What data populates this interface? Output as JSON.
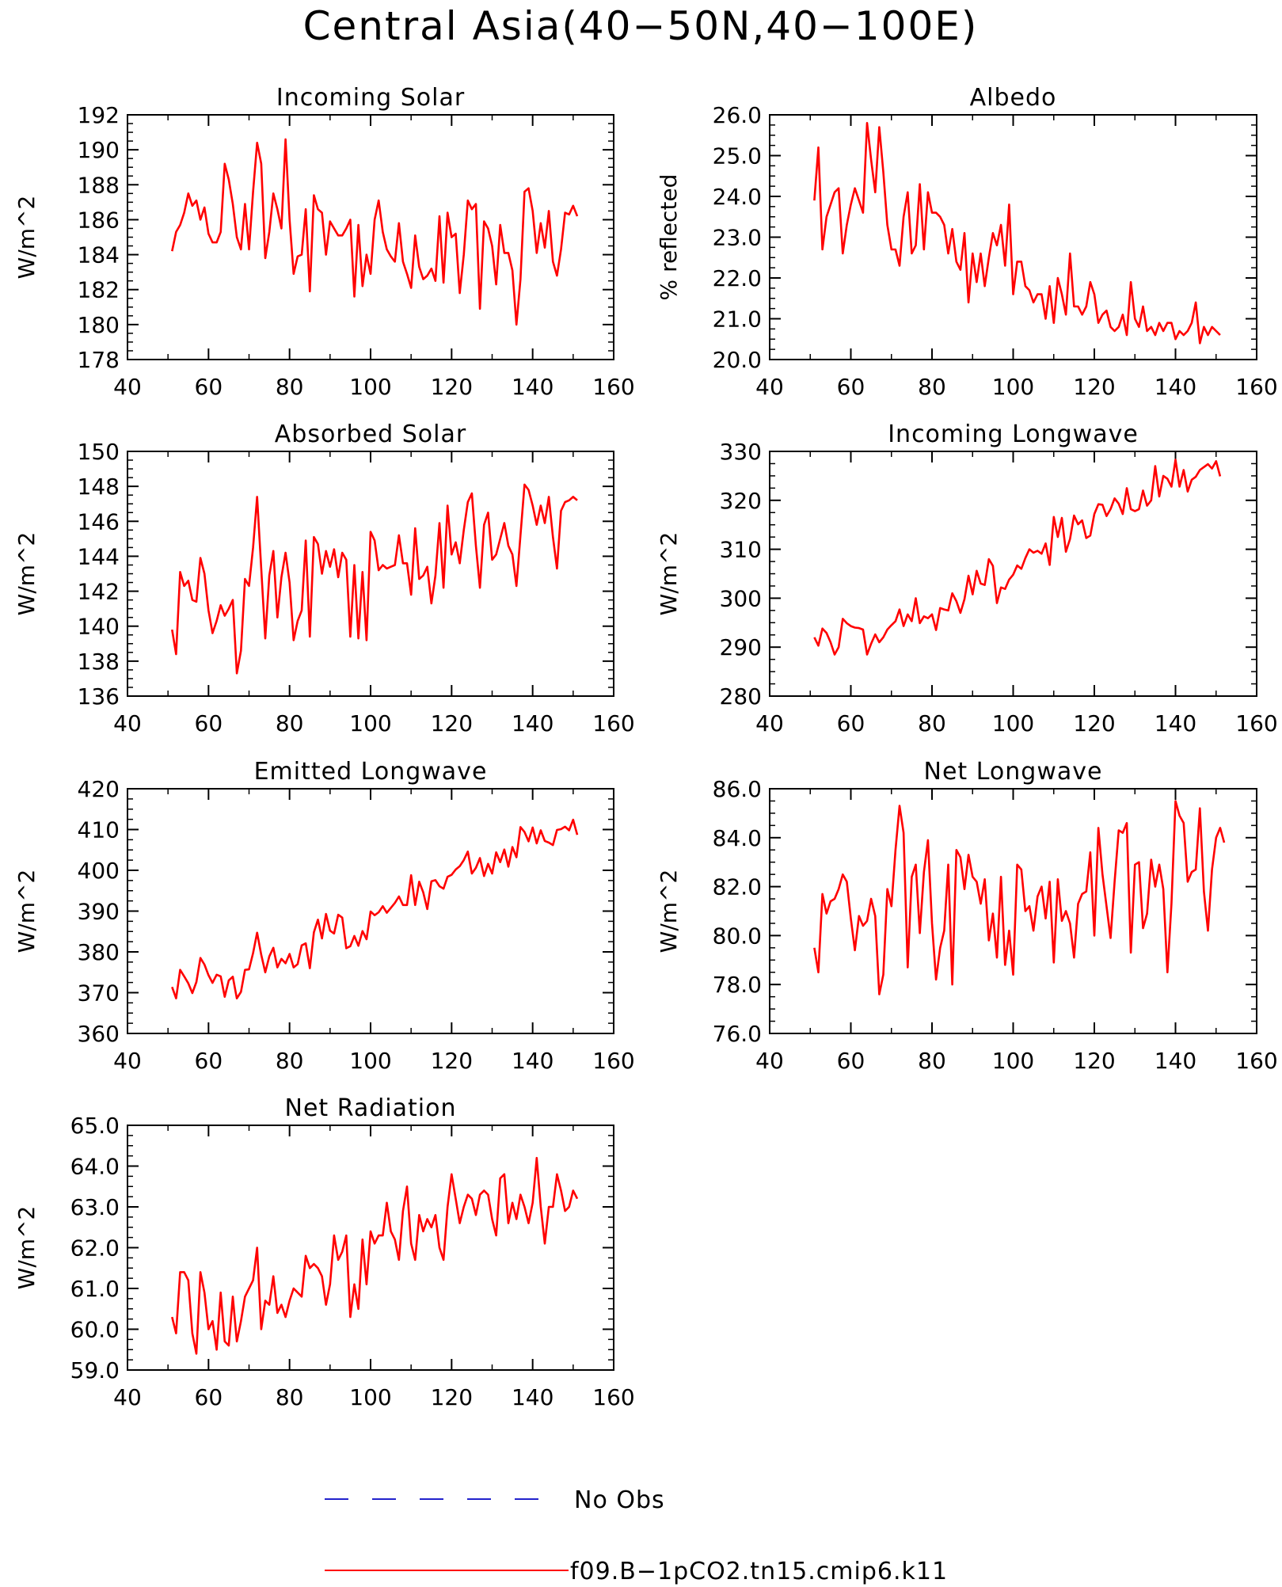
{
  "figure": {
    "title": "Central Asia(40−50N,40−100E)"
  },
  "legend": {
    "entries": [
      {
        "label": "No Obs",
        "color": "#2222cc",
        "dash": "dashed"
      },
      {
        "label": "f09.B−1pCO2.tn15.cmip6.k11",
        "color": "#ff0000",
        "dash": "solid"
      }
    ]
  },
  "colors": {
    "series": "#ff0000",
    "obs": "#2222cc",
    "axis": "#000000"
  },
  "chart_data": [
    {
      "type": "line",
      "title": "Incoming Solar",
      "ylabel": "W/m^2",
      "xlim": [
        40,
        160
      ],
      "ylim": [
        178,
        192
      ],
      "xticks": [
        40,
        60,
        80,
        100,
        120,
        140,
        160
      ],
      "yticks": [
        178,
        180,
        182,
        184,
        186,
        188,
        190,
        192
      ],
      "ytick_labels": [
        "178",
        "180",
        "182",
        "184",
        "186",
        "188",
        "190",
        "192"
      ],
      "x_start": 51,
      "series": [
        {
          "name": "f09.B−1pCO2.tn15.cmip6.k11",
          "values": [
            184.2,
            185.3,
            185.7,
            186.4,
            187.5,
            186.8,
            187.1,
            186.0,
            186.7,
            185.2,
            184.7,
            184.7,
            185.3,
            189.2,
            188.3,
            186.9,
            185.0,
            184.3,
            186.9,
            184.3,
            187.6,
            190.4,
            189.2,
            183.8,
            185.3,
            187.5,
            186.6,
            185.5,
            190.6,
            186.0,
            182.9,
            183.9,
            184.0,
            186.6,
            181.9,
            187.4,
            186.6,
            186.4,
            184.0,
            185.9,
            185.5,
            185.1,
            185.1,
            185.5,
            186.0,
            181.6,
            185.7,
            182.2,
            184.0,
            182.9,
            186.0,
            187.1,
            185.3,
            184.3,
            183.9,
            183.6,
            185.8,
            183.6,
            182.9,
            182.1,
            185.1,
            183.3,
            182.6,
            182.8,
            183.2,
            182.5,
            186.2,
            182.4,
            186.4,
            185.0,
            185.2,
            181.8,
            184.0,
            187.1,
            186.6,
            186.9,
            180.9,
            185.9,
            185.5,
            184.5,
            182.3,
            185.7,
            184.1,
            184.1,
            183.1,
            180.0,
            182.6,
            187.6,
            187.8,
            186.5,
            184.1,
            185.8,
            184.4,
            186.5,
            183.6,
            182.8,
            184.3,
            186.4,
            186.3,
            186.8,
            186.2
          ]
        }
      ]
    },
    {
      "type": "line",
      "title": "Albedo",
      "ylabel": "% reflected",
      "xlim": [
        40,
        160
      ],
      "ylim": [
        20,
        26
      ],
      "xticks": [
        40,
        60,
        80,
        100,
        120,
        140,
        160
      ],
      "yticks": [
        20,
        21,
        22,
        23,
        24,
        25,
        26
      ],
      "ytick_labels": [
        "20.0",
        "21.0",
        "22.0",
        "23.0",
        "24.0",
        "25.0",
        "26.0"
      ],
      "x_start": 51,
      "series": [
        {
          "name": "f09.B−1pCO2.tn15.cmip6.k11",
          "values": [
            23.9,
            25.2,
            22.7,
            23.5,
            23.8,
            24.1,
            24.2,
            22.6,
            23.3,
            23.8,
            24.2,
            23.9,
            23.6,
            25.8,
            24.9,
            24.1,
            25.7,
            24.6,
            23.3,
            22.7,
            22.7,
            22.3,
            23.5,
            24.1,
            22.6,
            22.8,
            24.3,
            22.7,
            24.1,
            23.6,
            23.6,
            23.5,
            23.3,
            22.6,
            23.2,
            22.4,
            22.2,
            23.1,
            21.4,
            22.6,
            21.9,
            22.6,
            21.8,
            22.5,
            23.1,
            22.8,
            23.3,
            22.3,
            23.8,
            21.6,
            22.4,
            22.4,
            21.8,
            21.7,
            21.4,
            21.6,
            21.6,
            21.0,
            21.8,
            20.9,
            22.0,
            21.6,
            21.1,
            22.6,
            21.3,
            21.3,
            21.1,
            21.3,
            21.9,
            21.6,
            20.9,
            21.1,
            21.2,
            20.8,
            20.7,
            20.8,
            21.1,
            20.6,
            21.9,
            21.0,
            20.8,
            21.3,
            20.7,
            20.8,
            20.6,
            20.9,
            20.7,
            20.9,
            20.9,
            20.5,
            20.7,
            20.6,
            20.7,
            20.9,
            21.4,
            20.4,
            20.8,
            20.6,
            20.8,
            20.7,
            20.6
          ]
        }
      ]
    },
    {
      "type": "line",
      "title": "Absorbed Solar",
      "ylabel": "W/m^2",
      "xlim": [
        40,
        160
      ],
      "ylim": [
        136,
        150
      ],
      "xticks": [
        40,
        60,
        80,
        100,
        120,
        140,
        160
      ],
      "yticks": [
        136,
        138,
        140,
        142,
        144,
        146,
        148,
        150
      ],
      "ytick_labels": [
        "136",
        "138",
        "140",
        "142",
        "144",
        "146",
        "148",
        "150"
      ],
      "x_start": 51,
      "series": [
        {
          "name": "f09.B−1pCO2.tn15.cmip6.k11",
          "values": [
            139.8,
            138.4,
            143.1,
            142.3,
            142.6,
            141.5,
            141.4,
            143.9,
            143.0,
            140.9,
            139.6,
            140.3,
            141.2,
            140.6,
            141.0,
            141.5,
            137.3,
            138.6,
            142.7,
            142.3,
            144.5,
            147.4,
            143.3,
            139.3,
            142.9,
            144.3,
            140.5,
            142.8,
            144.2,
            142.5,
            139.2,
            140.3,
            140.9,
            144.9,
            139.4,
            145.1,
            144.7,
            143.0,
            144.3,
            143.4,
            144.4,
            142.8,
            144.2,
            143.8,
            139.4,
            143.5,
            139.3,
            143.1,
            139.2,
            145.4,
            144.9,
            143.2,
            143.5,
            143.3,
            143.4,
            143.5,
            145.2,
            143.6,
            143.6,
            141.8,
            145.6,
            142.7,
            142.9,
            143.4,
            141.3,
            142.9,
            145.9,
            142.2,
            146.9,
            144.1,
            144.8,
            143.6,
            145.5,
            147.1,
            147.6,
            144.6,
            142.2,
            145.8,
            146.5,
            143.8,
            144.1,
            145.0,
            145.9,
            144.6,
            144.1,
            142.3,
            145.2,
            148.1,
            147.8,
            146.9,
            145.8,
            146.9,
            145.9,
            147.4,
            145.1,
            143.3,
            146.6,
            147.1,
            147.2,
            147.4,
            147.2
          ]
        }
      ]
    },
    {
      "type": "line",
      "title": "Incoming Longwave",
      "ylabel": "W/m^2",
      "xlim": [
        40,
        160
      ],
      "ylim": [
        280,
        330
      ],
      "xticks": [
        40,
        60,
        80,
        100,
        120,
        140,
        160
      ],
      "yticks": [
        280,
        290,
        300,
        310,
        320,
        330
      ],
      "ytick_labels": [
        "280",
        "290",
        "300",
        "310",
        "320",
        "330"
      ],
      "x_start": 51,
      "series": [
        {
          "name": "f09.B−1pCO2.tn15.cmip6.k11",
          "values": [
            292.0,
            290.3,
            293.8,
            292.9,
            291.0,
            288.5,
            290.0,
            295.8,
            294.9,
            294.3,
            294.0,
            293.9,
            293.6,
            288.5,
            290.7,
            292.6,
            291.0,
            292.0,
            293.6,
            294.5,
            295.3,
            297.7,
            294.3,
            296.7,
            295.3,
            300.0,
            294.9,
            296.3,
            295.9,
            296.7,
            293.5,
            298.0,
            297.7,
            297.5,
            301.0,
            299.4,
            297.0,
            299.8,
            304.6,
            300.8,
            305.6,
            303.0,
            302.7,
            308.0,
            306.6,
            299.0,
            302.2,
            301.9,
            303.8,
            304.8,
            306.7,
            306.0,
            308.2,
            310.0,
            309.3,
            309.7,
            309.1,
            311.2,
            306.8,
            316.6,
            312.5,
            316.4,
            309.5,
            312.1,
            316.9,
            315.1,
            315.9,
            312.3,
            312.8,
            317.2,
            319.2,
            319.1,
            316.8,
            318.2,
            320.4,
            319.3,
            317.2,
            322.5,
            318.2,
            317.8,
            318.2,
            322.0,
            318.9,
            320.0,
            327.0,
            320.8,
            325.0,
            324.4,
            322.8,
            328.3,
            322.8,
            326.2,
            321.8,
            324.2,
            324.8,
            326.2,
            326.8,
            327.4,
            326.5,
            328.0,
            324.9
          ]
        }
      ]
    },
    {
      "type": "line",
      "title": "Emitted Longwave",
      "ylabel": "W/m^2",
      "xlim": [
        40,
        160
      ],
      "ylim": [
        360,
        420
      ],
      "xticks": [
        40,
        60,
        80,
        100,
        120,
        140,
        160
      ],
      "yticks": [
        360,
        370,
        380,
        390,
        400,
        410,
        420
      ],
      "ytick_labels": [
        "360",
        "370",
        "380",
        "390",
        "400",
        "410",
        "420"
      ],
      "x_start": 51,
      "series": [
        {
          "name": "f09.B−1pCO2.tn15.cmip6.k11",
          "values": [
            371.4,
            368.6,
            375.6,
            374.0,
            372.3,
            369.9,
            372.6,
            378.5,
            376.9,
            374.3,
            372.4,
            374.4,
            374.0,
            369.0,
            373.0,
            373.9,
            368.6,
            370.2,
            375.6,
            375.7,
            379.7,
            384.7,
            379.3,
            375.0,
            378.9,
            381.0,
            376.2,
            378.3,
            377.2,
            379.5,
            376.2,
            377.0,
            381.6,
            382.1,
            376.0,
            384.8,
            387.9,
            383.3,
            389.3,
            385.2,
            384.5,
            389.1,
            388.4,
            380.9,
            381.4,
            383.9,
            381.5,
            385.1,
            383.1,
            389.9,
            389.0,
            389.7,
            391.2,
            389.6,
            390.8,
            392.0,
            393.6,
            391.5,
            391.5,
            398.8,
            391.5,
            397.2,
            394.6,
            390.5,
            397.3,
            397.6,
            396.1,
            395.5,
            398.4,
            398.9,
            400.2,
            401.0,
            402.5,
            404.6,
            399.2,
            400.6,
            403.0,
            398.6,
            401.6,
            399.2,
            404.4,
            402.0,
            405.1,
            400.9,
            405.7,
            403.2,
            410.6,
            409.4,
            407.1,
            410.5,
            406.6,
            409.8,
            407.2,
            406.8,
            406.2,
            409.9,
            410.1,
            410.7,
            409.8,
            412.4,
            408.7
          ]
        }
      ]
    },
    {
      "type": "line",
      "title": "Net Longwave",
      "ylabel": "W/m^2",
      "xlim": [
        40,
        160
      ],
      "ylim": [
        76,
        86
      ],
      "xticks": [
        40,
        60,
        80,
        100,
        120,
        140,
        160
      ],
      "yticks": [
        76,
        78,
        80,
        82,
        84,
        86
      ],
      "ytick_labels": [
        "76.0",
        "78.0",
        "80.0",
        "82.0",
        "84.0",
        "86.0"
      ],
      "x_start": 51,
      "series": [
        {
          "name": "f09.B−1pCO2.tn15.cmip6.k11",
          "values": [
            79.5,
            78.5,
            81.7,
            80.9,
            81.4,
            81.5,
            81.9,
            82.5,
            82.2,
            80.7,
            79.4,
            80.8,
            80.4,
            80.6,
            81.5,
            80.8,
            77.6,
            78.4,
            81.9,
            81.2,
            83.5,
            85.3,
            84.2,
            78.7,
            82.4,
            82.9,
            80.1,
            82.6,
            83.9,
            80.5,
            78.2,
            79.5,
            80.2,
            82.9,
            78.0,
            83.5,
            83.2,
            81.9,
            83.3,
            82.4,
            82.2,
            81.3,
            82.3,
            79.8,
            80.9,
            79.1,
            82.4,
            78.8,
            80.2,
            78.4,
            82.9,
            82.7,
            81.0,
            81.2,
            80.2,
            81.6,
            82.0,
            80.7,
            82.2,
            78.9,
            82.3,
            80.6,
            81.0,
            80.5,
            79.1,
            81.3,
            81.7,
            81.8,
            83.4,
            80.0,
            84.4,
            82.5,
            81.2,
            79.9,
            82.2,
            84.3,
            84.2,
            84.6,
            79.3,
            82.9,
            83.0,
            80.3,
            80.9,
            83.1,
            82.0,
            82.9,
            81.9,
            78.5,
            81.3,
            85.5,
            84.9,
            84.6,
            82.2,
            82.6,
            82.7,
            85.2,
            81.8,
            80.2,
            82.7,
            84.0,
            84.4,
            83.8
          ]
        }
      ]
    },
    {
      "type": "line",
      "title": "Net Radiation",
      "ylabel": "W/m^2",
      "xlim": [
        40,
        160
      ],
      "ylim": [
        59,
        65
      ],
      "xticks": [
        40,
        60,
        80,
        100,
        120,
        140,
        160
      ],
      "yticks": [
        59,
        60,
        61,
        62,
        63,
        64,
        65
      ],
      "ytick_labels": [
        "59.0",
        "60.0",
        "61.0",
        "62.0",
        "63.0",
        "64.0",
        "65.0"
      ],
      "x_start": 51,
      "series": [
        {
          "name": "f09.B−1pCO2.tn15.cmip6.k11",
          "values": [
            60.3,
            59.9,
            61.4,
            61.4,
            61.2,
            59.9,
            59.4,
            61.4,
            60.9,
            60.0,
            60.2,
            59.5,
            60.9,
            59.7,
            59.6,
            60.8,
            59.7,
            60.2,
            60.8,
            61.0,
            61.2,
            62.0,
            60.0,
            60.7,
            60.6,
            61.3,
            60.4,
            60.6,
            60.3,
            60.7,
            61.0,
            60.9,
            60.8,
            61.8,
            61.5,
            61.6,
            61.5,
            61.3,
            60.6,
            61.1,
            62.3,
            61.7,
            61.9,
            62.3,
            60.3,
            61.1,
            60.5,
            62.2,
            61.1,
            62.4,
            62.1,
            62.3,
            62.3,
            63.1,
            62.4,
            62.2,
            61.7,
            62.9,
            63.5,
            62.1,
            61.7,
            62.8,
            62.4,
            62.7,
            62.5,
            62.8,
            62.0,
            61.7,
            63.0,
            63.8,
            63.2,
            62.6,
            63.0,
            63.3,
            63.2,
            62.8,
            63.3,
            63.4,
            63.3,
            62.7,
            62.3,
            63.7,
            63.8,
            62.6,
            63.1,
            62.7,
            63.3,
            63.0,
            62.6,
            63.1,
            64.2,
            63.0,
            62.1,
            63.0,
            63.0,
            63.8,
            63.4,
            62.9,
            63.0,
            63.4,
            63.2
          ]
        }
      ]
    }
  ]
}
